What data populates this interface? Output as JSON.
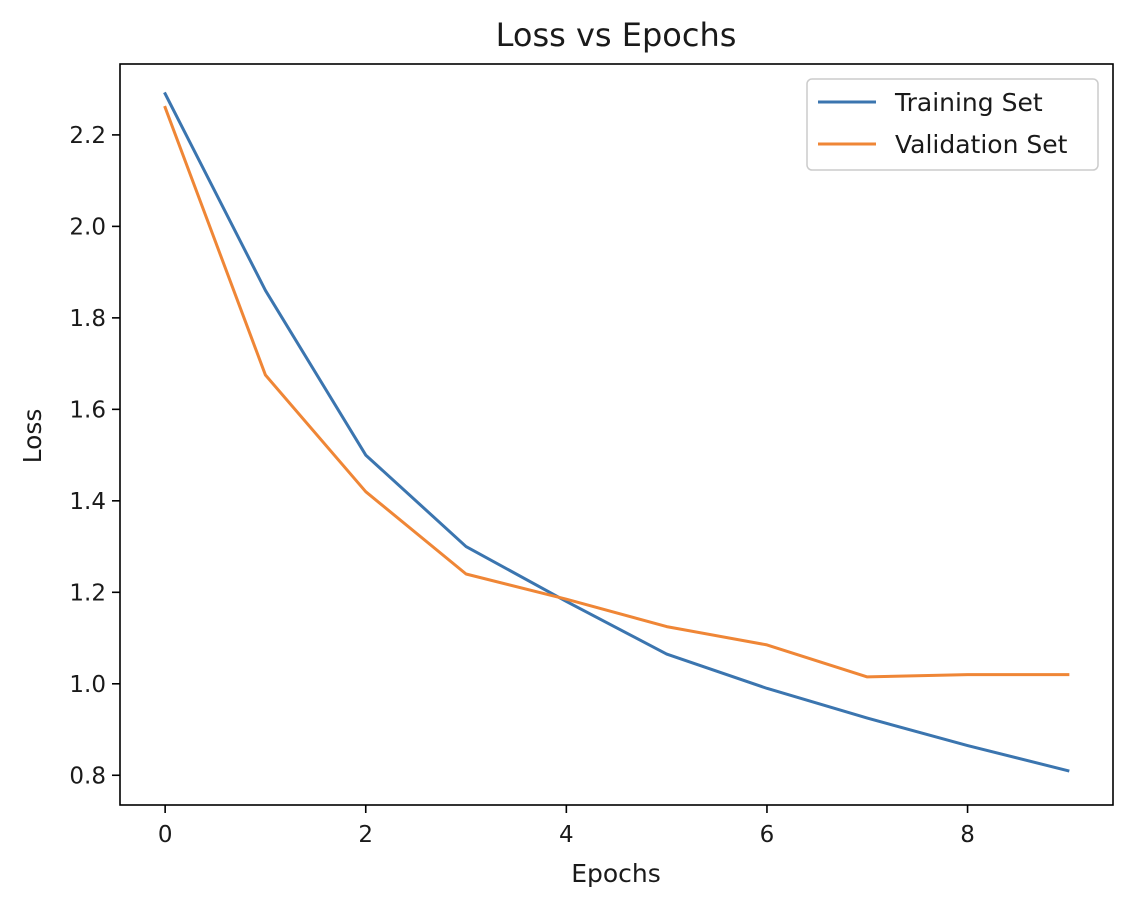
{
  "chart_data": {
    "type": "line",
    "title": "Loss vs Epochs",
    "xlabel": "Epochs",
    "ylabel": "Loss",
    "x": [
      0,
      1,
      2,
      3,
      4,
      5,
      6,
      7,
      8,
      9
    ],
    "xlim": [
      -0.45,
      9.45
    ],
    "ylim": [
      0.735,
      2.355
    ],
    "xticks": [
      0,
      2,
      4,
      6,
      8
    ],
    "xtick_labels": [
      "0",
      "2",
      "4",
      "6",
      "8"
    ],
    "yticks": [
      0.8,
      1.0,
      1.2,
      1.4,
      1.6,
      1.8,
      2.0,
      2.2
    ],
    "ytick_labels": [
      "0.8",
      "1.0",
      "1.2",
      "1.4",
      "1.6",
      "1.8",
      "2.0",
      "2.2"
    ],
    "grid": false,
    "legend_position": "top-right",
    "series": [
      {
        "name": "Training Set",
        "color": "#3b75af",
        "values": [
          2.29,
          1.86,
          1.5,
          1.3,
          1.18,
          1.065,
          0.99,
          0.925,
          0.865,
          0.81
        ]
      },
      {
        "name": "Validation Set",
        "color": "#ef8636",
        "values": [
          2.26,
          1.675,
          1.42,
          1.24,
          1.185,
          1.125,
          1.085,
          1.015,
          1.02,
          1.02
        ]
      }
    ]
  }
}
